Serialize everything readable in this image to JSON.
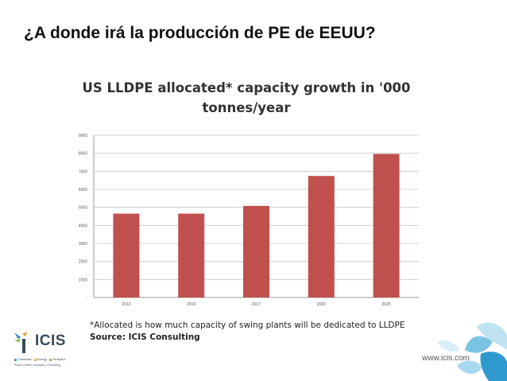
{
  "slide": {
    "title": "¿A donde irá la producción de PE de EEUU?"
  },
  "chart_data": {
    "type": "bar",
    "title_lines": [
      "US LLDPE allocated* capacity growth in '000",
      "tonnes/year"
    ],
    "categories": [
      "2013",
      "2016",
      "2017",
      "2020",
      "2025"
    ],
    "series": [
      {
        "values": [
          4650,
          4650,
          5080,
          6740,
          7960
        ]
      }
    ],
    "y_ticks": [
      "-",
      "1000",
      "2000",
      "3000",
      "4000",
      "5000",
      "6000",
      "7000",
      "8000",
      "9000"
    ],
    "ylim": [
      0,
      9000
    ],
    "grid": true,
    "bar_color": "#c0504d",
    "footnote": "*Allocated is how much capacity of swing plants will be dedicated to LLDPE",
    "source": "Source: ICIS Consulting"
  },
  "footer": {
    "logo_text": "ICIS",
    "logo_tags": [
      "Chemicals",
      "Energy",
      "Fertilizers"
    ],
    "logo_tag_colors": [
      "#2a7bc0",
      "#e8a020",
      "#7ab648"
    ],
    "logo_sub": "Prices | News | Analysis | Consulting",
    "url": "www.icis.com"
  }
}
